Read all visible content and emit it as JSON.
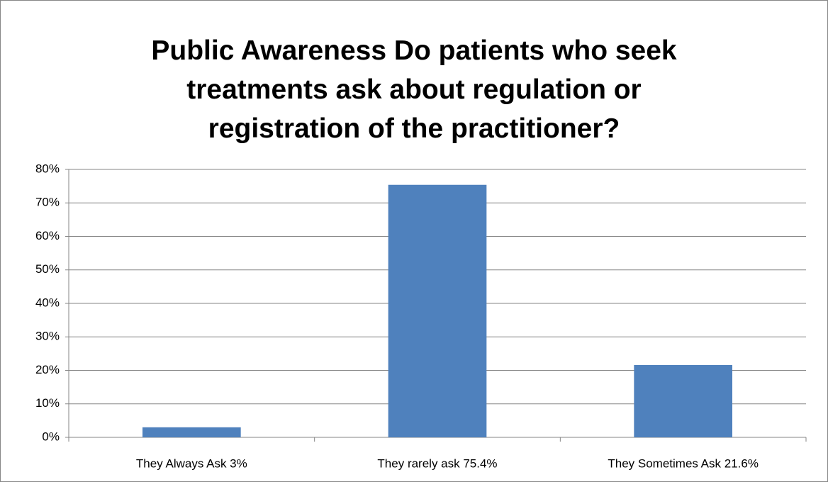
{
  "chart_data": {
    "type": "bar",
    "title": "Public Awareness Do patients who seek treatments ask about regulation or registration of the practitioner?",
    "categories": [
      "They Always Ask 3%",
      "They rarely ask 75.4%",
      "They Sometimes Ask 21.6%"
    ],
    "values": [
      3,
      75.4,
      21.6
    ],
    "color": "#4f81bd",
    "ylim": [
      0,
      80
    ],
    "yticks": [
      {
        "value": 0,
        "label": "0%"
      },
      {
        "value": 10,
        "label": "10%"
      },
      {
        "value": 20,
        "label": "20%"
      },
      {
        "value": 30,
        "label": "30%"
      },
      {
        "value": 40,
        "label": "40%"
      },
      {
        "value": 50,
        "label": "50%"
      },
      {
        "value": 60,
        "label": "60%"
      },
      {
        "value": 70,
        "label": "70%"
      },
      {
        "value": 80,
        "label": "80%"
      }
    ],
    "grid": true
  }
}
